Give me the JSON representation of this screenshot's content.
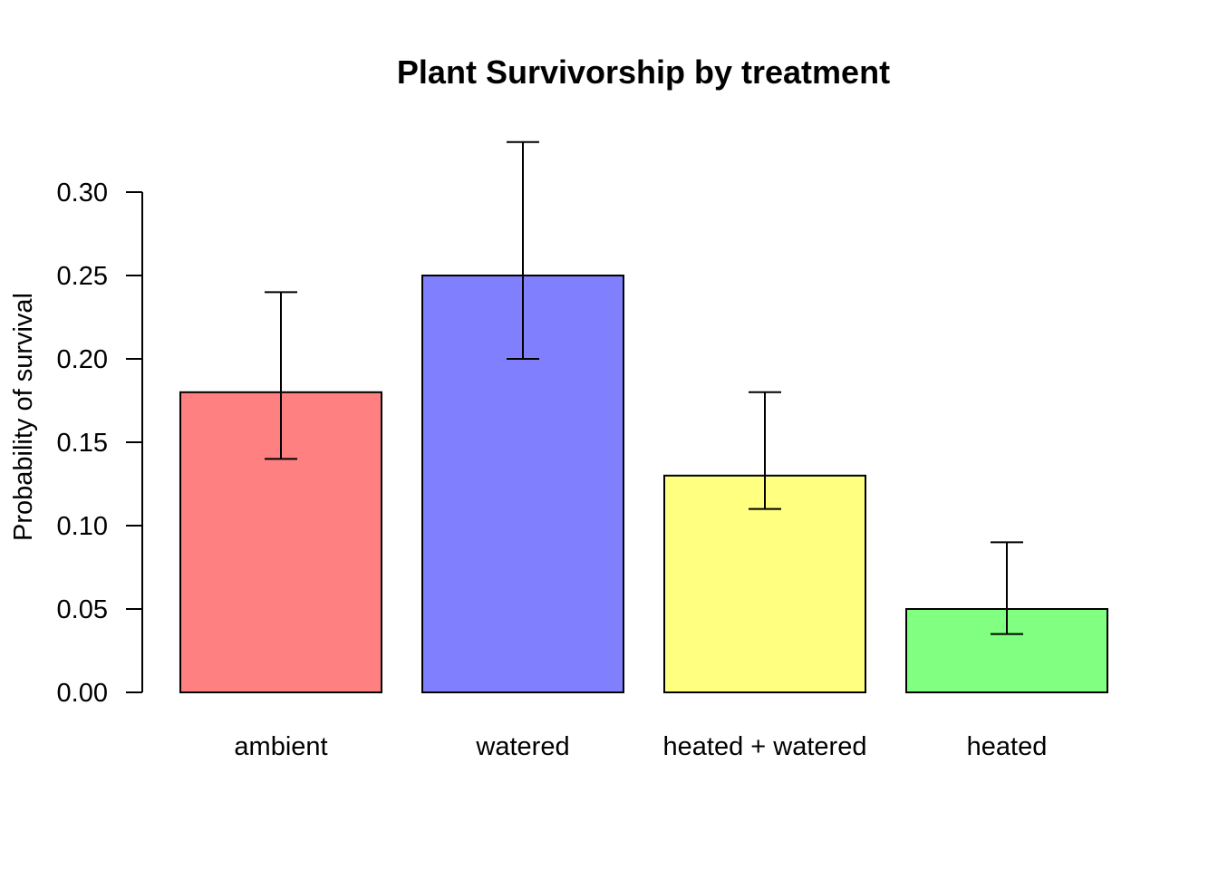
{
  "chart_data": {
    "type": "bar",
    "title": "Plant Survivorship by treatment",
    "xlabel": "",
    "ylabel": "Probability of survival",
    "categories": [
      "ambient",
      "watered",
      "heated + watered",
      "heated"
    ],
    "values": [
      0.18,
      0.25,
      0.13,
      0.05
    ],
    "error_lower": [
      0.14,
      0.2,
      0.11,
      0.035
    ],
    "error_upper": [
      0.24,
      0.33,
      0.18,
      0.09
    ],
    "colors": [
      "#ff8080",
      "#8080ff",
      "#ffff80",
      "#80ff80"
    ],
    "yticks": [
      0.0,
      0.05,
      0.1,
      0.15,
      0.2,
      0.25,
      0.3
    ],
    "ytick_labels": [
      "0.00",
      "0.05",
      "0.10",
      "0.15",
      "0.20",
      "0.25",
      "0.30"
    ],
    "ylim": [
      0,
      0.3
    ],
    "grid": false,
    "legend": "none"
  }
}
